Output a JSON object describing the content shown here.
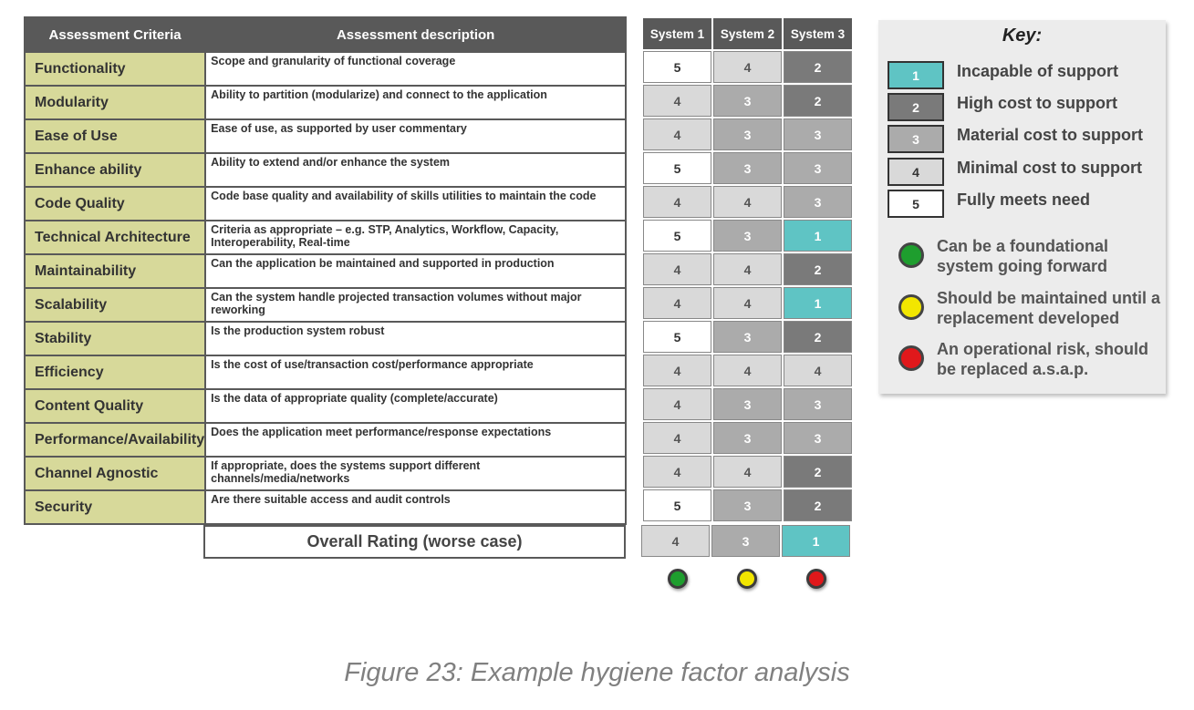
{
  "headers": {
    "criteria": "Assessment Criteria",
    "description": "Assessment description",
    "systems": [
      "System 1",
      "System 2",
      "System 3"
    ]
  },
  "rows": [
    {
      "criteria": "Functionality",
      "description": "Scope and granularity of functional coverage",
      "ratings": [
        5,
        4,
        2
      ]
    },
    {
      "criteria": "Modularity",
      "description": "Ability to partition (modularize) and connect to the application",
      "ratings": [
        4,
        3,
        2
      ]
    },
    {
      "criteria": "Ease of Use",
      "description": "Ease of use, as supported by user commentary",
      "ratings": [
        4,
        3,
        3
      ]
    },
    {
      "criteria": "Enhance ability",
      "description": "Ability to extend and/or enhance the system",
      "ratings": [
        5,
        3,
        3
      ]
    },
    {
      "criteria": "Code Quality",
      "description": "Code base quality and availability of skills utilities to maintain the code",
      "ratings": [
        4,
        4,
        3
      ]
    },
    {
      "criteria": "Technical Architecture",
      "description": "Criteria as appropriate – e.g. STP, Analytics, Workflow, Capacity, Interoperability, Real-time",
      "ratings": [
        5,
        3,
        1
      ]
    },
    {
      "criteria": "Maintainability",
      "description": "Can the application be maintained and supported in production",
      "ratings": [
        4,
        4,
        2
      ]
    },
    {
      "criteria": "Scalability",
      "description": "Can the system handle projected transaction volumes without major reworking",
      "ratings": [
        4,
        4,
        1
      ]
    },
    {
      "criteria": "Stability",
      "description": "Is the production system robust",
      "ratings": [
        5,
        3,
        2
      ]
    },
    {
      "criteria": "Efficiency",
      "description": "Is the cost of use/transaction cost/performance appropriate",
      "ratings": [
        4,
        4,
        4
      ]
    },
    {
      "criteria": "Content Quality",
      "description": "Is the data of appropriate quality (complete/accurate)",
      "ratings": [
        4,
        3,
        3
      ]
    },
    {
      "criteria": "Performance/Availability",
      "description": "Does the application meet performance/response expectations",
      "ratings": [
        4,
        3,
        3
      ]
    },
    {
      "criteria": "Channel Agnostic",
      "description": "If appropriate, does the systems support different channels/media/networks",
      "ratings": [
        4,
        4,
        2
      ]
    },
    {
      "criteria": "Security",
      "description": "Are there suitable access and audit controls",
      "ratings": [
        5,
        3,
        2
      ]
    }
  ],
  "overall": {
    "label": "Overall Rating (worse case)",
    "ratings": [
      4,
      3,
      1
    ],
    "status_colors": [
      "#1e9e2e",
      "#f2e600",
      "#e0181b"
    ]
  },
  "key": {
    "title": "Key:",
    "scale": [
      {
        "value": "1",
        "label": "Incapable of support"
      },
      {
        "value": "2",
        "label": "High cost to support"
      },
      {
        "value": "3",
        "label": "Material cost to support"
      },
      {
        "value": "4",
        "label": "Minimal cost to support"
      },
      {
        "value": "5",
        "label": "Fully meets need"
      }
    ],
    "status": [
      {
        "color": "#1e9e2e",
        "label": "Can be a foundational system going forward"
      },
      {
        "color": "#f2e600",
        "label": "Should be maintained until a replacement developed"
      },
      {
        "color": "#e0181b",
        "label": "An operational risk, should be replaced a.s.a.p."
      }
    ]
  },
  "rating_colors": {
    "1": "#5fc4c4",
    "2": "#7a7a7a",
    "3": "#ababab",
    "4": "#d9d9d9",
    "5": "#ffffff"
  },
  "caption": "Figure 23: Example hygiene factor analysis"
}
